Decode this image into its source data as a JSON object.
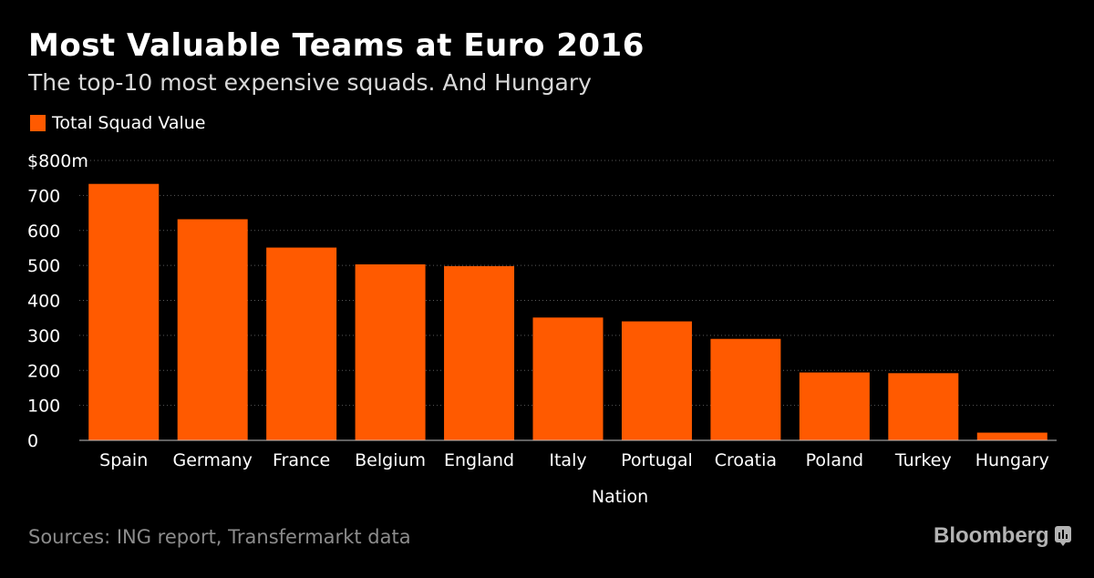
{
  "header": {
    "title": "Most Valuable Teams at Euro 2016",
    "subtitle": "The top-10 most expensive squads. And Hungary"
  },
  "footer": {
    "source": "Sources: ING report, Transfermarkt data",
    "brand": "Bloomberg"
  },
  "colors": {
    "background": "#000000",
    "bar": "#ff5a00",
    "gridline": "#5a5a5a",
    "axis_text": "#ffffff",
    "muted_text": "#8c8c8c"
  },
  "icons": {
    "brand": "bloomberg-logo-icon"
  },
  "chart_data": {
    "type": "bar",
    "title": "Most Valuable Teams at Euro 2016",
    "subtitle": "The top-10 most expensive squads. And Hungary",
    "xlabel": "Nation",
    "ylabel": "",
    "categories": [
      "Spain",
      "Germany",
      "France",
      "Belgium",
      "England",
      "Italy",
      "Portugal",
      "Croatia",
      "Poland",
      "Turkey",
      "Hungary"
    ],
    "series": [
      {
        "name": "Total Squad Value",
        "values": [
          733,
          632,
          551,
          503,
          498,
          351,
          340,
          290,
          194,
          192,
          22
        ]
      }
    ],
    "ylim": [
      0,
      800
    ],
    "yticks": [
      0,
      100,
      200,
      300,
      400,
      500,
      600,
      700,
      800
    ],
    "ytick_labels": [
      "0",
      "100",
      "200",
      "300",
      "400",
      "500",
      "600",
      "700",
      "$800m"
    ],
    "grid": true,
    "grid_style": "dotted",
    "legend_position": "top-left"
  }
}
